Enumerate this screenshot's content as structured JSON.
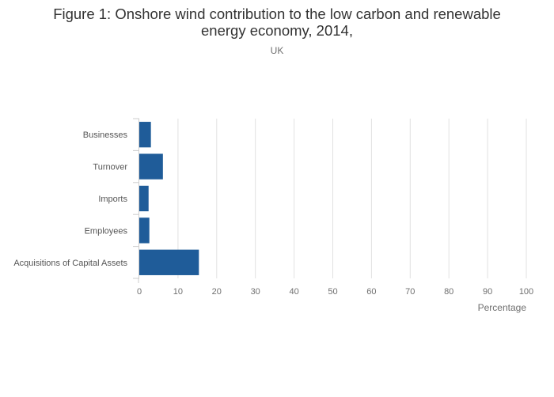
{
  "title_line1": "Figure 1: Onshore wind contribution to the low carbon and renewable",
  "title_line2": "energy economy, 2014,",
  "subtitle": "UK",
  "colors": {
    "bar": "#1f5c99",
    "grid": "#e1e1e1",
    "axis": "#cccccc"
  },
  "chart_data": {
    "type": "bar",
    "orientation": "horizontal",
    "title": "Figure 1: Onshore wind contribution to the low carbon and renewable energy economy, 2014,",
    "subtitle": "UK",
    "categories": [
      "Businesses",
      "Turnover",
      "Imports",
      "Employees",
      "Acquisitions of Capital Assets"
    ],
    "values": [
      3.0,
      6.1,
      2.4,
      2.6,
      15.4
    ],
    "xlabel": "Percentage",
    "ylabel": "",
    "xlim": [
      0,
      100
    ],
    "xticks": [
      0,
      10,
      20,
      30,
      40,
      50,
      60,
      70,
      80,
      90,
      100
    ],
    "grid": true,
    "legend": "none"
  }
}
